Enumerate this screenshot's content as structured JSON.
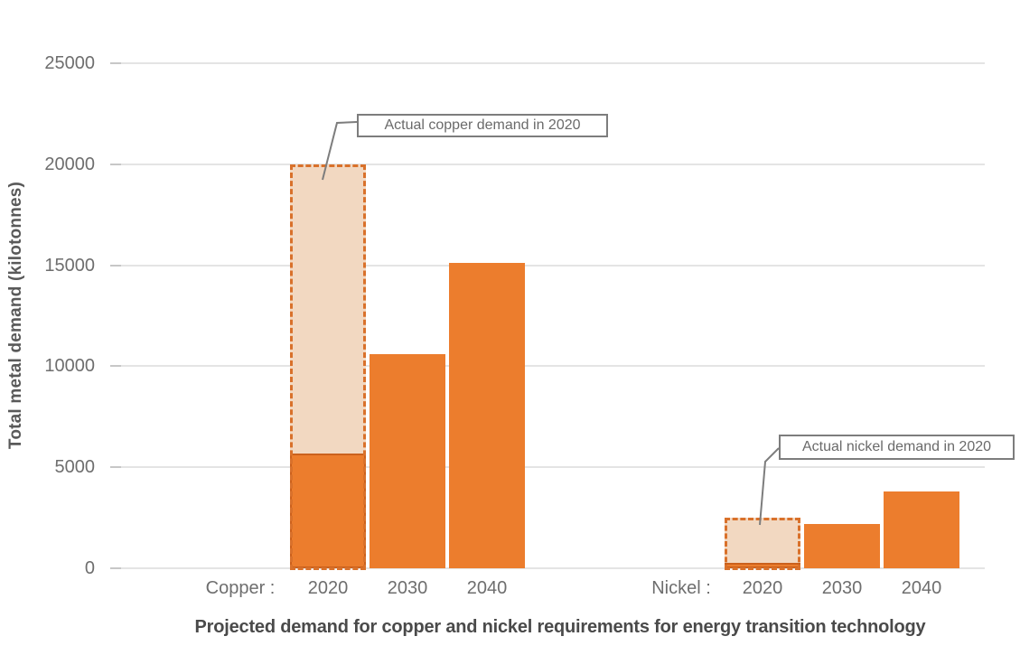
{
  "chart_data": {
    "type": "bar",
    "title": "Projected demand for copper and nickel requirements for energy transition technology",
    "ylabel": "Total metal demand (kilotonnes)",
    "ylim": [
      0,
      25000
    ],
    "yticks": [
      0,
      5000,
      10000,
      15000,
      20000,
      25000
    ],
    "grid": true,
    "groups": [
      {
        "name": "Copper",
        "axis_label": "Copper :",
        "categories": [
          "2020",
          "2030",
          "2040"
        ],
        "projected_values": [
          5700,
          10600,
          15100
        ],
        "actual_2020": 20000,
        "annotation": "Actual copper demand in 2020"
      },
      {
        "name": "Nickel",
        "axis_label": "Nickel :",
        "categories": [
          "2020",
          "2030",
          "2040"
        ],
        "projected_values": [
          250,
          2200,
          3800
        ],
        "actual_2020": 2500,
        "annotation": "Actual nickel demand in 2020"
      }
    ],
    "colors": {
      "bar": "#ec7d2d",
      "bar_border_2020": "#cb611d",
      "actual_fill": "#f2d8c1",
      "actual_dashed_border": "#d9712b",
      "gridline": "#e4e4e4",
      "axis_text": "#6e6e6e",
      "annotation_border": "#7d7d7d",
      "annotation_text": "#6a6a6a",
      "title_text": "#4a4a4a"
    }
  }
}
